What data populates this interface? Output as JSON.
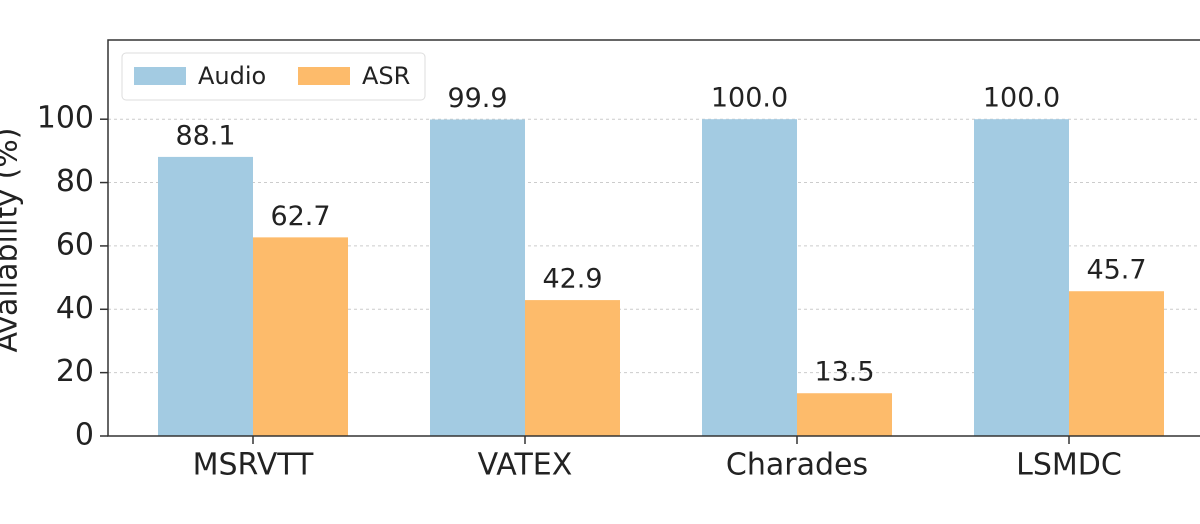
{
  "chart_data": {
    "type": "bar",
    "y_label": "Availability (%)",
    "categories": [
      "MSRVTT",
      "VATEX",
      "Charades",
      "LSMDC"
    ],
    "series": [
      {
        "name": "Audio",
        "color": "#a3cbe2",
        "values": [
          88.1,
          99.9,
          100.0,
          100.0
        ],
        "value_labels": [
          "88.1",
          "99.9",
          "100.0",
          "100.0"
        ]
      },
      {
        "name": "ASR",
        "color": "#fdbb6b",
        "values": [
          62.7,
          42.9,
          13.5,
          45.7
        ],
        "value_labels": [
          "62.7",
          "42.9",
          "13.5",
          "45.7"
        ]
      }
    ],
    "ylim": [
      0,
      125
    ],
    "yticks": [
      0,
      20,
      40,
      60,
      80,
      100
    ],
    "grid": true,
    "legend": "upper left"
  }
}
